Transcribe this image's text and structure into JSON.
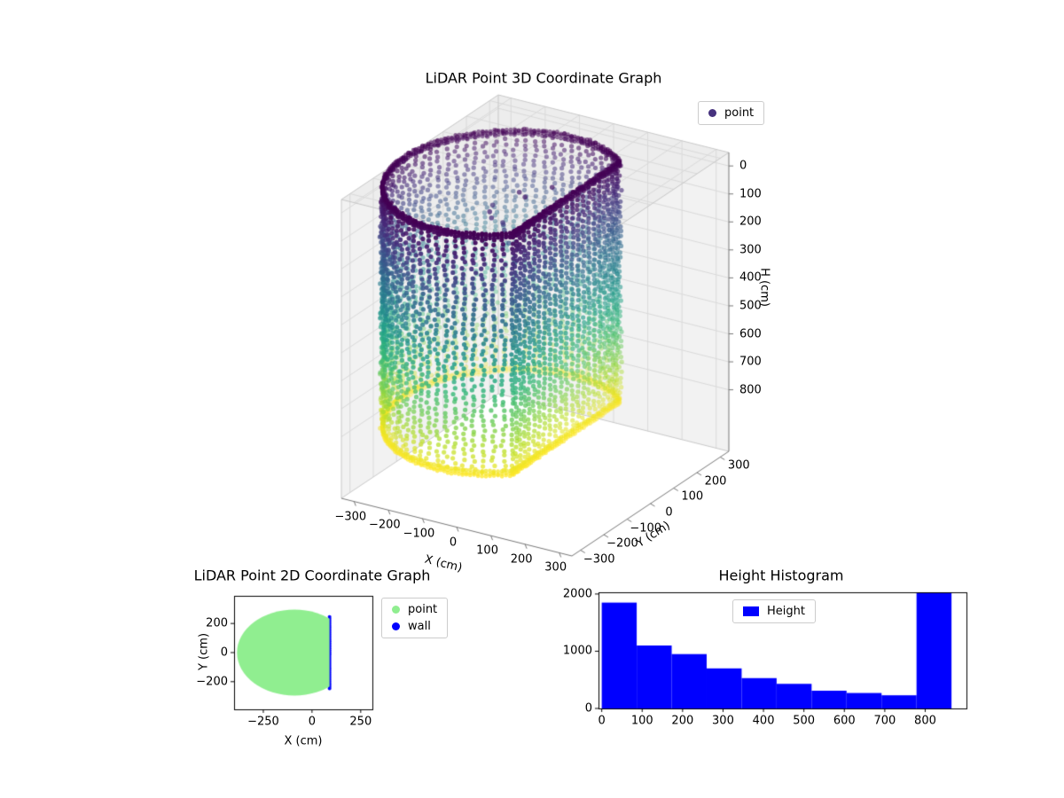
{
  "figure": {
    "background": "#ffffff"
  },
  "chart_data": [
    {
      "id": "lidar-3d",
      "type": "scatter3d",
      "title": "LiDAR Point 3D Coordinate Graph",
      "xlabel": "X (cm)",
      "ylabel": "Y (cm)",
      "zlabel": "H (cm)",
      "xticks": [
        -300,
        -200,
        -100,
        0,
        100,
        200,
        300
      ],
      "yticks": [
        -300,
        -200,
        -100,
        0,
        100,
        200,
        300
      ],
      "zticks": [
        0,
        100,
        200,
        300,
        400,
        500,
        600,
        700,
        800
      ],
      "xlim": [
        -300,
        300
      ],
      "ylim": [
        -300,
        300
      ],
      "zlim": [
        0,
        865
      ],
      "zaxis_inverted": true,
      "colormap": "viridis",
      "grid": true,
      "legend": [
        {
          "label": "point",
          "color": "#46327e"
        }
      ],
      "point_cloud": {
        "shape": "cylindrical room scan with flat wall on +X side, color mapped to height (dark=0, yellow=max)",
        "center_x_cm": -90,
        "center_y_cm": 0,
        "radius_cm": 295,
        "wall_x_cm": 90,
        "height_min_cm": 0,
        "height_max_cm": 865,
        "columns": 76,
        "row_step_cm": 18,
        "dense_rings_at_cm": [
          0,
          8,
          16,
          848,
          857,
          865
        ],
        "stray_interior_points": 14
      }
    },
    {
      "id": "lidar-2d",
      "type": "scatter",
      "title": "LiDAR Point 2D Coordinate Graph",
      "xlabel": "X (cm)",
      "ylabel": "Y (cm)",
      "xticks": [
        -250,
        0,
        250
      ],
      "yticks": [
        -200,
        0,
        200
      ],
      "xlim": [
        -400,
        310
      ],
      "ylim": [
        -390,
        390
      ],
      "series": [
        {
          "name": "point",
          "color": "#90ee90",
          "shape": "filled disc clipped by wall",
          "center_x": -90,
          "center_y": 0,
          "radius": 295,
          "wall_x": 90
        },
        {
          "name": "wall",
          "color": "#0000ff",
          "x": 90,
          "y_extent": 247
        }
      ]
    },
    {
      "id": "height-histogram",
      "type": "histogram",
      "title": "Height Histogram",
      "color": "#0000ff",
      "legend": [
        {
          "label": "Height",
          "color": "#0000ff"
        }
      ],
      "bin_edges": [
        0,
        86.5,
        173,
        259.5,
        346,
        432.5,
        519,
        605.5,
        692,
        778.5,
        865
      ],
      "counts": [
        1850,
        1100,
        950,
        700,
        530,
        430,
        310,
        270,
        230,
        2020
      ],
      "xticks": [
        0,
        100,
        200,
        300,
        400,
        500,
        600,
        700,
        800
      ],
      "yticks": [
        0,
        1000,
        2000
      ],
      "xlim": [
        -8,
        902
      ],
      "ylim": [
        0,
        2030
      ],
      "legend_position": "upper center"
    }
  ]
}
